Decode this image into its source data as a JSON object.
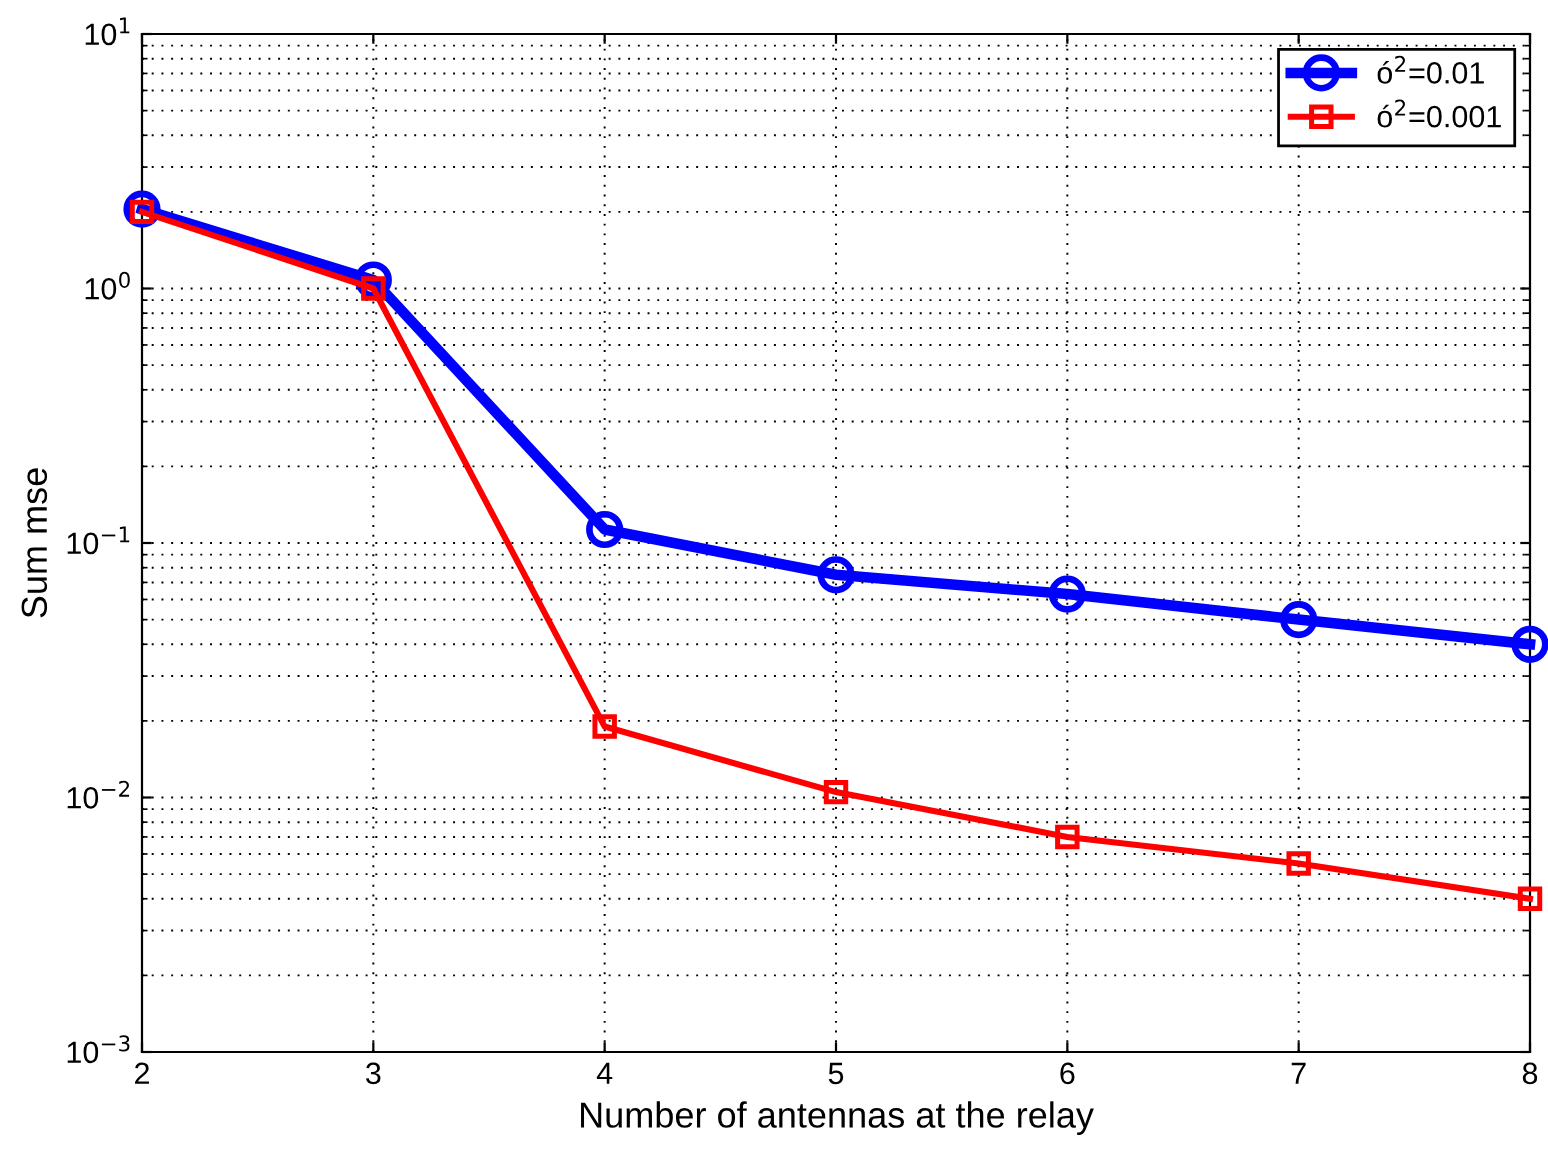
{
  "chart_data": {
    "type": "line",
    "xlabel": "Number of antennas at the relay",
    "ylabel": "Sum mse",
    "x": [
      2,
      3,
      4,
      5,
      6,
      7,
      8
    ],
    "series": [
      {
        "name": "ó$^{2}$=0.01",
        "color": "#0000ff",
        "marker": "circle",
        "values": [
          2.05,
          1.08,
          0.113,
          0.075,
          0.063,
          0.05,
          0.04
        ]
      },
      {
        "name": "ó$^{2}$=0.001",
        "color": "#ff0000",
        "marker": "square",
        "values": [
          2.0,
          1.0,
          0.019,
          0.0105,
          0.007,
          0.0055,
          0.004
        ]
      }
    ],
    "log": "y",
    "xlim": [
      2,
      8
    ],
    "xticks": [
      2,
      3,
      4,
      5,
      6,
      7,
      8
    ],
    "ylim": [
      0.001,
      10
    ],
    "yticks": [
      {
        "value": 0.001,
        "label": "10$^{−3}$"
      },
      {
        "value": 0.01,
        "label": "10$^{−2}$"
      },
      {
        "value": 0.1,
        "label": "10$^{−1}$"
      },
      {
        "value": 1,
        "label": "10$^{0}$"
      },
      {
        "value": 10,
        "label": "10$^{1}$"
      }
    ],
    "grid": true,
    "legend": "top right",
    "line_style": "solid"
  }
}
